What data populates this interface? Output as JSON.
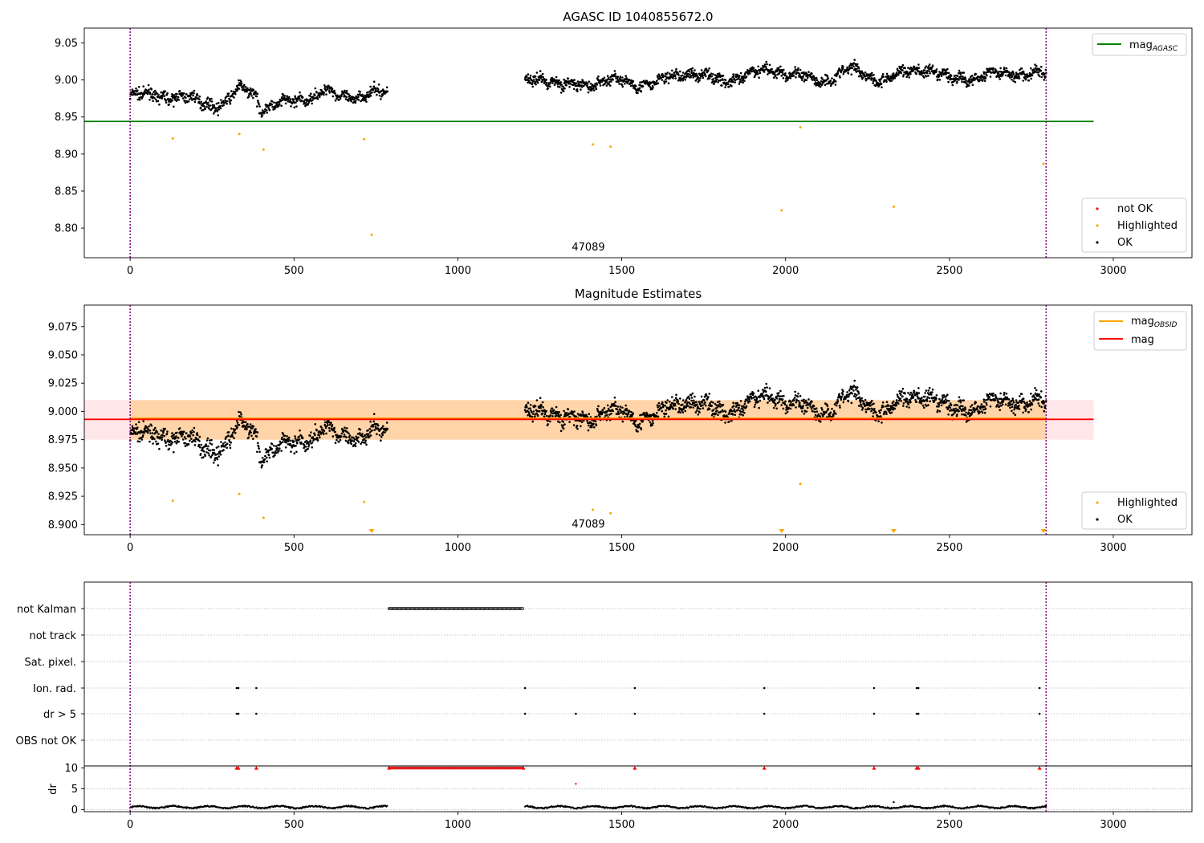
{
  "chart_data": [
    {
      "type": "scatter",
      "title": "AGASC ID 1040855672.0",
      "xlim": [
        -140,
        3240
      ],
      "ylim": [
        8.76,
        9.07
      ],
      "xticks": [
        0,
        500,
        1000,
        1500,
        2000,
        2500,
        3000
      ],
      "yticks": [
        8.8,
        8.85,
        8.9,
        8.95,
        9.0,
        9.05
      ],
      "ytick_labels": [
        "8.80",
        "8.85",
        "8.90",
        "8.95",
        "9.00",
        "9.05"
      ],
      "annotation": "47089",
      "obs_boundaries": [
        0,
        2795
      ],
      "lines": [
        {
          "name": "mag_AGASC",
          "legend_main": "mag",
          "legend_sub": "AGASC",
          "color": "#008000",
          "y": 8.944,
          "x_range": [
            -140,
            2940
          ]
        }
      ],
      "scatter_legend": [
        "not OK",
        "Highlighted",
        "OK"
      ],
      "highlighted_points": [
        {
          "x": 130,
          "y": 8.921
        },
        {
          "x": 333,
          "y": 8.927
        },
        {
          "x": 407,
          "y": 8.906
        },
        {
          "x": 714,
          "y": 8.92
        },
        {
          "x": 737,
          "y": 8.791
        },
        {
          "x": 1412,
          "y": 8.913
        },
        {
          "x": 1466,
          "y": 8.91
        },
        {
          "x": 1988,
          "y": 8.824
        },
        {
          "x": 2045,
          "y": 8.936
        },
        {
          "x": 2330,
          "y": 8.829
        },
        {
          "x": 2787,
          "y": 8.887
        }
      ],
      "ok_segments": [
        {
          "x_start": 0,
          "x_end": 785,
          "n": 700,
          "baseline": [
            [
              0,
              8.978
            ],
            [
              100,
              8.98
            ],
            [
              200,
              8.972
            ],
            [
              280,
              8.966
            ],
            [
              340,
              8.988
            ],
            [
              380,
              8.983
            ],
            [
              400,
              8.963
            ],
            [
              450,
              8.965
            ],
            [
              520,
              8.974
            ],
            [
              600,
              8.985
            ],
            [
              640,
              8.976
            ],
            [
              700,
              8.98
            ],
            [
              785,
              8.982
            ]
          ],
          "noise": 0.007
        },
        {
          "x_start": 1205,
          "x_end": 2795,
          "n": 1500,
          "baseline": [
            [
              1205,
              8.998
            ],
            [
              1260,
              9.005
            ],
            [
              1330,
              8.99
            ],
            [
              1450,
              8.999
            ],
            [
              1600,
              8.994
            ],
            [
              1700,
              9.012
            ],
            [
              1800,
              8.998
            ],
            [
              1900,
              9.008
            ],
            [
              1960,
              9.015
            ],
            [
              2100,
              8.998
            ],
            [
              2200,
              9.014
            ],
            [
              2300,
              9.0
            ],
            [
              2420,
              9.017
            ],
            [
              2500,
              9.0
            ],
            [
              2600,
              9.006
            ],
            [
              2700,
              9.01
            ],
            [
              2795,
              9.006
            ]
          ],
          "noise": 0.007
        }
      ]
    },
    {
      "type": "scatter",
      "title": "Magnitude Estimates",
      "xlim": [
        -140,
        3240
      ],
      "ylim": [
        8.891,
        9.094
      ],
      "xticks": [
        0,
        500,
        1000,
        1500,
        2000,
        2500,
        3000
      ],
      "yticks": [
        8.9,
        8.925,
        8.95,
        8.975,
        9.0,
        9.025,
        9.05,
        9.075
      ],
      "ytick_labels": [
        "8.900",
        "8.925",
        "8.950",
        "8.975",
        "9.000",
        "9.025",
        "9.050",
        "9.075"
      ],
      "annotation": "47089",
      "obs_boundaries": [
        0,
        2795
      ],
      "bands": [
        {
          "name": "mag band",
          "color": "#ffb6c1",
          "opacity": 0.35,
          "x_range": [
            -140,
            2940
          ],
          "y_range": [
            8.975,
            9.01
          ]
        },
        {
          "name": "obsid band",
          "color": "#ffa500",
          "opacity": 0.28,
          "x_range": [
            0,
            2795
          ],
          "y_range": [
            8.975,
            9.01
          ]
        }
      ],
      "lines": [
        {
          "name": "mag_OBSID",
          "legend_main": "mag",
          "legend_sub": "OBSID",
          "color": "#ffa500",
          "y": 8.994,
          "x_range": [
            0,
            2795
          ]
        },
        {
          "name": "mag",
          "legend_main": "mag",
          "legend_sub": "",
          "color": "#ff0000",
          "y": 8.993,
          "x_range": [
            -140,
            2940
          ]
        }
      ],
      "scatter_legend": [
        "Highlighted",
        "OK"
      ],
      "highlighted_points": [
        {
          "x": 130,
          "y": 8.921
        },
        {
          "x": 333,
          "y": 8.927
        },
        {
          "x": 407,
          "y": 8.906
        },
        {
          "x": 714,
          "y": 8.92
        },
        {
          "x": 1412,
          "y": 8.913
        },
        {
          "x": 1466,
          "y": 8.91
        },
        {
          "x": 2045,
          "y": 8.936
        }
      ],
      "offscale_markers": [
        {
          "x": 737
        },
        {
          "x": 1988
        },
        {
          "x": 2330
        },
        {
          "x": 2787
        }
      ]
    },
    {
      "type": "scatter",
      "title": "",
      "xlim": [
        -140,
        3240
      ],
      "xticks": [
        0,
        500,
        1000,
        1500,
        2000,
        2500,
        3000
      ],
      "obs_boundaries": [
        0,
        2795
      ],
      "flag_rows": [
        "not Kalman",
        "not track",
        "Sat. pixel.",
        "Ion. rad.",
        "dr > 5",
        "OBS not OK"
      ],
      "flags": {
        "not Kalman": [
          {
            "x_start": 790,
            "x_end": 1200
          }
        ],
        "Ion. rad.": [
          {
            "x": 325
          },
          {
            "x": 330
          },
          {
            "x": 385
          },
          {
            "x": 1205
          },
          {
            "x": 1540
          },
          {
            "x": 1935
          },
          {
            "x": 2270
          },
          {
            "x": 2400
          },
          {
            "x": 2405
          },
          {
            "x": 2775
          }
        ],
        "dr > 5": [
          {
            "x": 325
          },
          {
            "x": 330
          },
          {
            "x": 385
          },
          {
            "x": 1205
          },
          {
            "x": 1360
          },
          {
            "x": 1540
          },
          {
            "x": 1935
          },
          {
            "x": 2270
          },
          {
            "x": 2400
          },
          {
            "x": 2405
          },
          {
            "x": 2775
          }
        ]
      },
      "dr": {
        "ylabel": "dr",
        "yticks": [
          0,
          5,
          10
        ],
        "ylim": [
          -0.5,
          10.5
        ],
        "clipped_value": 10,
        "clipped_x": [
          325,
          330,
          385,
          790,
          1200,
          1540,
          1935,
          2270,
          2400,
          2405,
          2775
        ],
        "clipped_range": [
          790,
          1200
        ],
        "outliers": [
          {
            "x": 1360,
            "y": 6.2
          },
          {
            "x": 2330,
            "y": 1.8
          }
        ],
        "typical": 0.6
      }
    }
  ],
  "legend_labels": {
    "not_ok": "not OK",
    "highlighted": "Highlighted",
    "ok": "OK"
  }
}
